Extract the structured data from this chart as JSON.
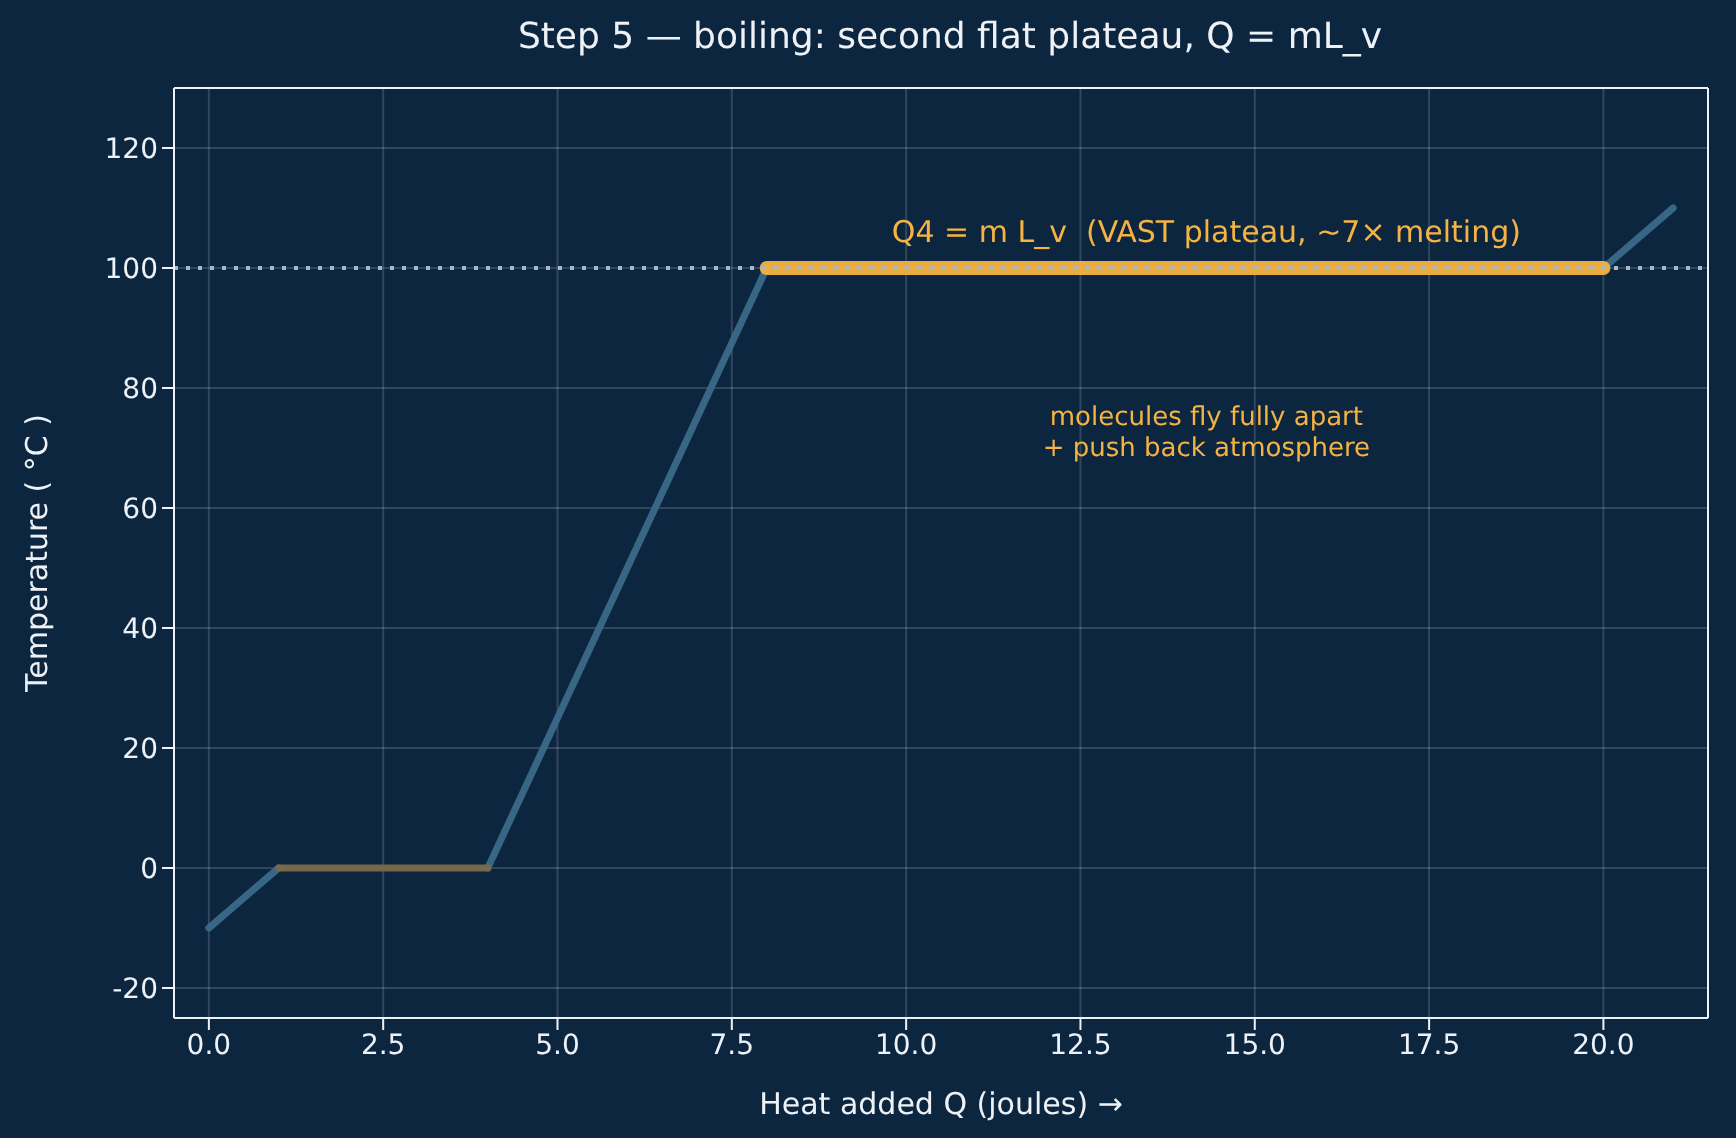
{
  "chart_data": {
    "type": "line",
    "title": "Step 5 — boiling: second flat plateau, Q = mL_v",
    "xlabel": "Heat added  Q  (joules) →",
    "ylabel": "Temperature ( °C )",
    "series": [
      {
        "color": "#3b6a8a",
        "x": [
          0,
          1,
          2.5,
          4,
          8,
          14,
          20,
          21
        ],
        "values": [
          -10,
          0,
          null,
          0,
          100,
          null,
          100,
          110
        ]
      },
      {
        "color": "#7d6a48",
        "x": [
          1,
          4
        ],
        "values": [
          0,
          0
        ]
      },
      {
        "color": "#f5b342",
        "x": [
          8,
          20
        ],
        "values": [
          100,
          100
        ]
      }
    ],
    "xlim": [
      -0.5,
      21.5
    ],
    "ylim": [
      -25,
      130
    ],
    "xticks": [
      {
        "value": 0,
        "label": "0.0"
      },
      {
        "value": 2.5,
        "label": "2.5"
      },
      {
        "value": 5,
        "label": "5.0"
      },
      {
        "value": 7.5,
        "label": "7.5"
      },
      {
        "value": 10,
        "label": "10.0"
      },
      {
        "value": 12.5,
        "label": "12.5"
      },
      {
        "value": 15,
        "label": "15.0"
      },
      {
        "value": 17.5,
        "label": "17.5"
      },
      {
        "value": 20,
        "label": "20.0"
      }
    ],
    "yticks": [
      -20,
      0,
      20,
      40,
      60,
      80,
      100,
      120
    ],
    "grid": true,
    "marker": "none",
    "ref_lines": [
      {
        "axis": "y",
        "value": 100,
        "color": "#a9b8c6",
        "line_style": "dotted"
      }
    ],
    "annotations": [
      "Q4 = m L_v  (VAST plateau, ~7× melting)",
      "molecules fly fully apart\n+ push back atmosphere"
    ]
  }
}
